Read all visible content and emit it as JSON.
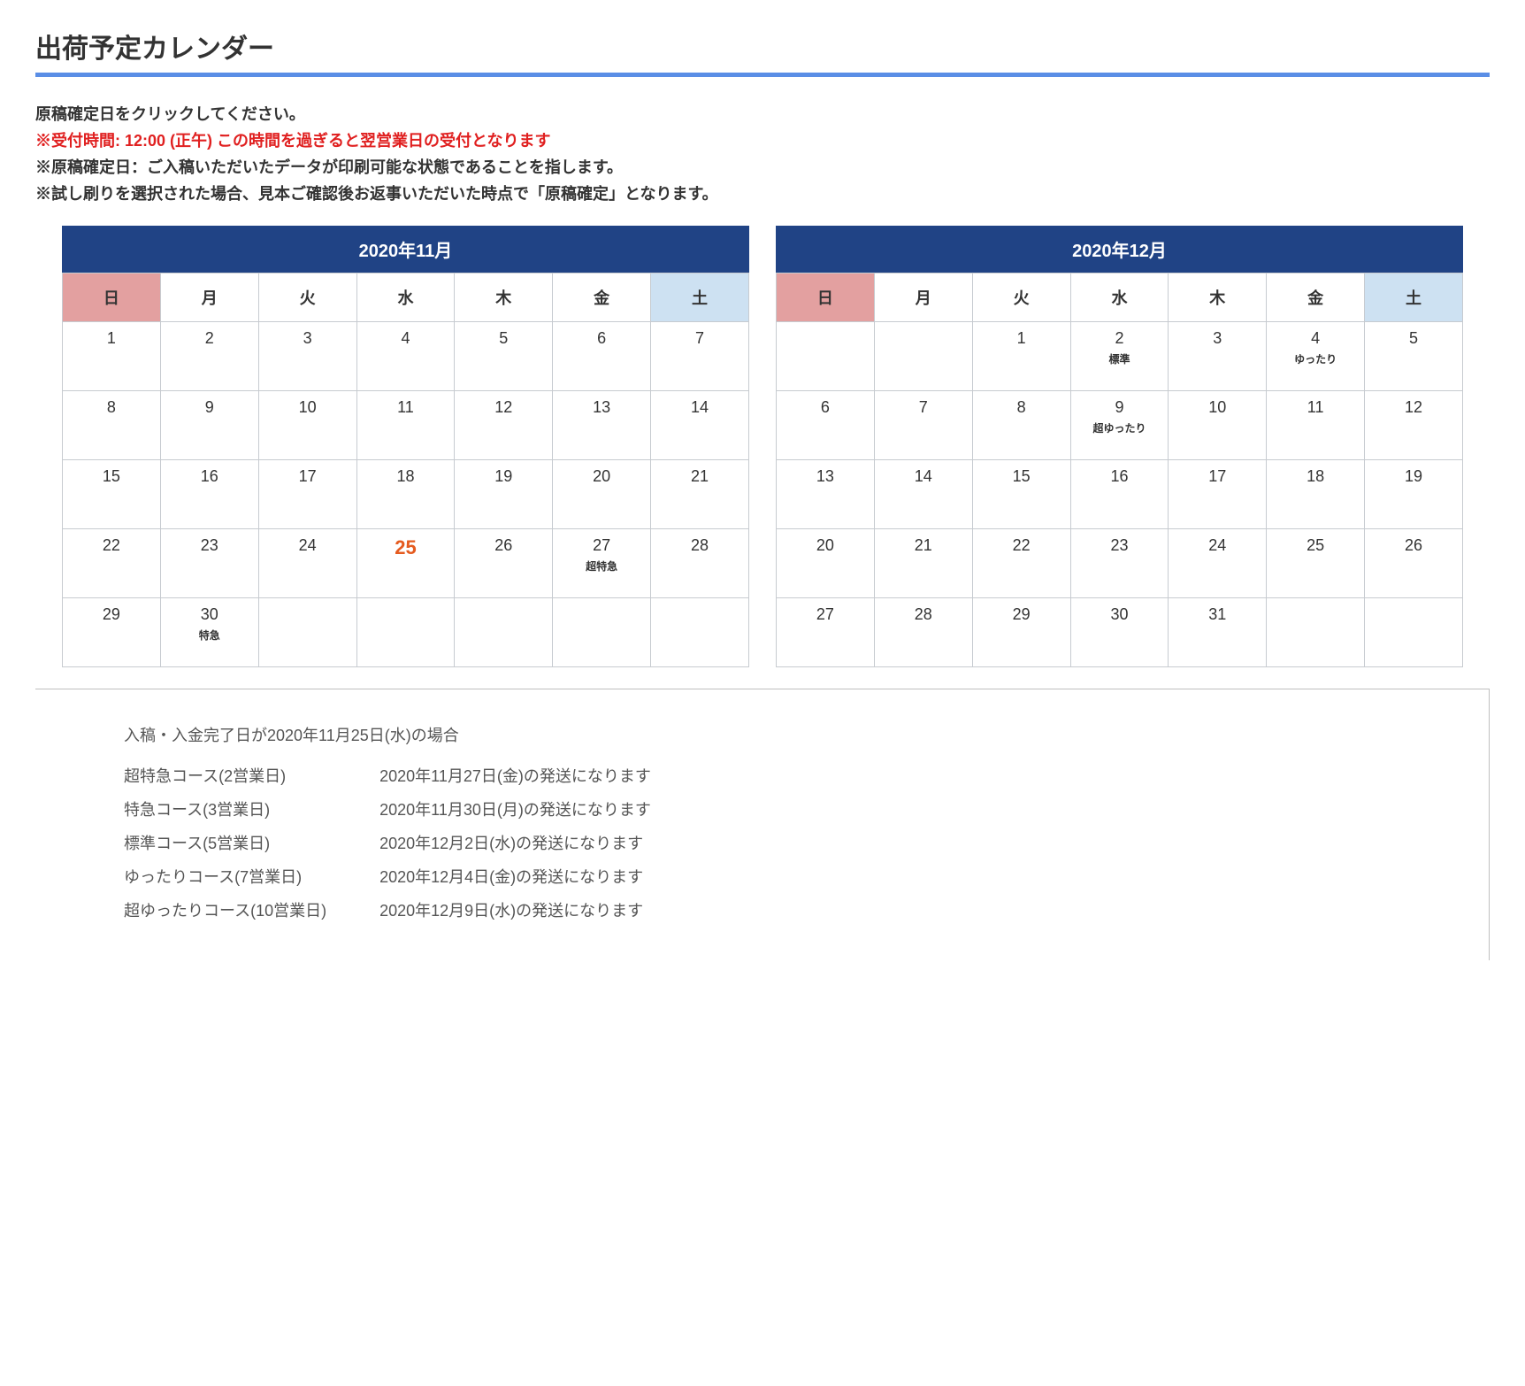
{
  "title": "出荷予定カレンダー",
  "instructions": {
    "line1": "原稿確定日をクリックしてください。",
    "line2": "※受付時間: 12:00 (正午) この時間を過ぎると翌営業日の受付となります",
    "line3": "※原稿確定日：ご入稿いただいたデータが印刷可能な状態であることを指します。",
    "line4": "※試し刷りを選択された場合、見本ご確認後お返事いただいた時点で「原稿確定」となります。"
  },
  "dow": {
    "sun": "日",
    "mon": "月",
    "tue": "火",
    "wed": "水",
    "thu": "木",
    "fri": "金",
    "sat": "土"
  },
  "calendars": [
    {
      "title": "2020年11月",
      "weeks": [
        [
          {
            "n": "1",
            "cls": "sun",
            "inter": false
          },
          {
            "n": "2",
            "cls": "",
            "inter": true
          },
          {
            "n": "3",
            "cls": "hol",
            "inter": false
          },
          {
            "n": "4",
            "cls": "",
            "inter": true
          },
          {
            "n": "5",
            "cls": "",
            "inter": true
          },
          {
            "n": "6",
            "cls": "",
            "inter": true
          },
          {
            "n": "7",
            "cls": "sat",
            "inter": false
          }
        ],
        [
          {
            "n": "8",
            "cls": "sun",
            "inter": false
          },
          {
            "n": "9",
            "cls": "",
            "inter": true
          },
          {
            "n": "10",
            "cls": "",
            "inter": true
          },
          {
            "n": "11",
            "cls": "",
            "inter": true
          },
          {
            "n": "12",
            "cls": "",
            "inter": true
          },
          {
            "n": "13",
            "cls": "",
            "inter": true
          },
          {
            "n": "14",
            "cls": "sat",
            "inter": false
          }
        ],
        [
          {
            "n": "15",
            "cls": "sun",
            "inter": false
          },
          {
            "n": "16",
            "cls": "",
            "inter": true
          },
          {
            "n": "17",
            "cls": "",
            "inter": true
          },
          {
            "n": "18",
            "cls": "",
            "inter": true
          },
          {
            "n": "19",
            "cls": "",
            "inter": true
          },
          {
            "n": "20",
            "cls": "",
            "inter": true
          },
          {
            "n": "21",
            "cls": "sat",
            "inter": false
          }
        ],
        [
          {
            "n": "22",
            "cls": "sun",
            "inter": false
          },
          {
            "n": "23",
            "cls": "hol",
            "inter": false
          },
          {
            "n": "24",
            "cls": "",
            "inter": true
          },
          {
            "n": "25",
            "cls": "today",
            "tag": "",
            "inter": true
          },
          {
            "n": "26",
            "cls": "",
            "inter": true
          },
          {
            "n": "27",
            "cls": "",
            "tag": "超特急",
            "inter": true
          },
          {
            "n": "28",
            "cls": "sat",
            "inter": false
          }
        ],
        [
          {
            "n": "29",
            "cls": "sun",
            "inter": false
          },
          {
            "n": "30",
            "cls": "",
            "tag": "特急",
            "inter": true
          },
          {
            "n": "",
            "cls": "blank",
            "inter": false
          },
          {
            "n": "",
            "cls": "blank",
            "inter": false
          },
          {
            "n": "",
            "cls": "blank",
            "inter": false
          },
          {
            "n": "",
            "cls": "blank",
            "inter": false
          },
          {
            "n": "",
            "cls": "blank",
            "inter": false
          }
        ]
      ]
    },
    {
      "title": "2020年12月",
      "weeks": [
        [
          {
            "n": "",
            "cls": "sun",
            "inter": false
          },
          {
            "n": "",
            "cls": "blank",
            "inter": false
          },
          {
            "n": "1",
            "cls": "",
            "inter": true
          },
          {
            "n": "2",
            "cls": "",
            "tag": "標準",
            "inter": true
          },
          {
            "n": "3",
            "cls": "",
            "inter": true
          },
          {
            "n": "4",
            "cls": "",
            "tag": "ゆったり",
            "inter": true
          },
          {
            "n": "5",
            "cls": "sat",
            "inter": false
          }
        ],
        [
          {
            "n": "6",
            "cls": "sun",
            "inter": false
          },
          {
            "n": "7",
            "cls": "",
            "inter": true
          },
          {
            "n": "8",
            "cls": "",
            "inter": true
          },
          {
            "n": "9",
            "cls": "",
            "tag": "超ゆったり",
            "inter": true
          },
          {
            "n": "10",
            "cls": "",
            "inter": true
          },
          {
            "n": "11",
            "cls": "",
            "inter": true
          },
          {
            "n": "12",
            "cls": "sat",
            "inter": false
          }
        ],
        [
          {
            "n": "13",
            "cls": "sun",
            "inter": false
          },
          {
            "n": "14",
            "cls": "",
            "inter": true
          },
          {
            "n": "15",
            "cls": "",
            "inter": true
          },
          {
            "n": "16",
            "cls": "",
            "inter": true
          },
          {
            "n": "17",
            "cls": "",
            "inter": true
          },
          {
            "n": "18",
            "cls": "",
            "inter": true
          },
          {
            "n": "19",
            "cls": "sat",
            "inter": false
          }
        ],
        [
          {
            "n": "20",
            "cls": "sun",
            "inter": false
          },
          {
            "n": "21",
            "cls": "",
            "inter": true
          },
          {
            "n": "22",
            "cls": "",
            "inter": true
          },
          {
            "n": "23",
            "cls": "",
            "inter": true
          },
          {
            "n": "24",
            "cls": "",
            "inter": true
          },
          {
            "n": "25",
            "cls": "",
            "inter": true
          },
          {
            "n": "26",
            "cls": "sat",
            "inter": false
          }
        ],
        [
          {
            "n": "27",
            "cls": "sun",
            "inter": false
          },
          {
            "n": "28",
            "cls": "",
            "inter": true
          },
          {
            "n": "29",
            "cls": "hol",
            "inter": false
          },
          {
            "n": "30",
            "cls": "hol",
            "inter": false
          },
          {
            "n": "31",
            "cls": "hol",
            "inter": false
          },
          {
            "n": "",
            "cls": "blank",
            "inter": false
          },
          {
            "n": "",
            "cls": "blank",
            "inter": false
          }
        ]
      ]
    }
  ],
  "courses": {
    "heading": "入稿・入金完了日が2020年11月25日(水)の場合",
    "rows": [
      {
        "name": "超特急コース(2営業日)",
        "date": "2020年11月27日(金)の発送になります"
      },
      {
        "name": "特急コース(3営業日)",
        "date": "2020年11月30日(月)の発送になります"
      },
      {
        "name": "標準コース(5営業日)",
        "date": "2020年12月2日(水)の発送になります"
      },
      {
        "name": "ゆったりコース(7営業日)",
        "date": "2020年12月4日(金)の発送になります"
      },
      {
        "name": "超ゆったりコース(10営業日)",
        "date": "2020年12月9日(水)の発送になります"
      }
    ]
  },
  "colors": {
    "accent_bar": "#5a8ee6",
    "header_bg": "#204385",
    "sun_bg": "#e3a0a0",
    "sat_bg": "#cde1f2",
    "hol_bg": "#a8a8a8",
    "today_text": "#e55b1f",
    "red_text": "#e02020",
    "border": "#c7cbd0"
  }
}
